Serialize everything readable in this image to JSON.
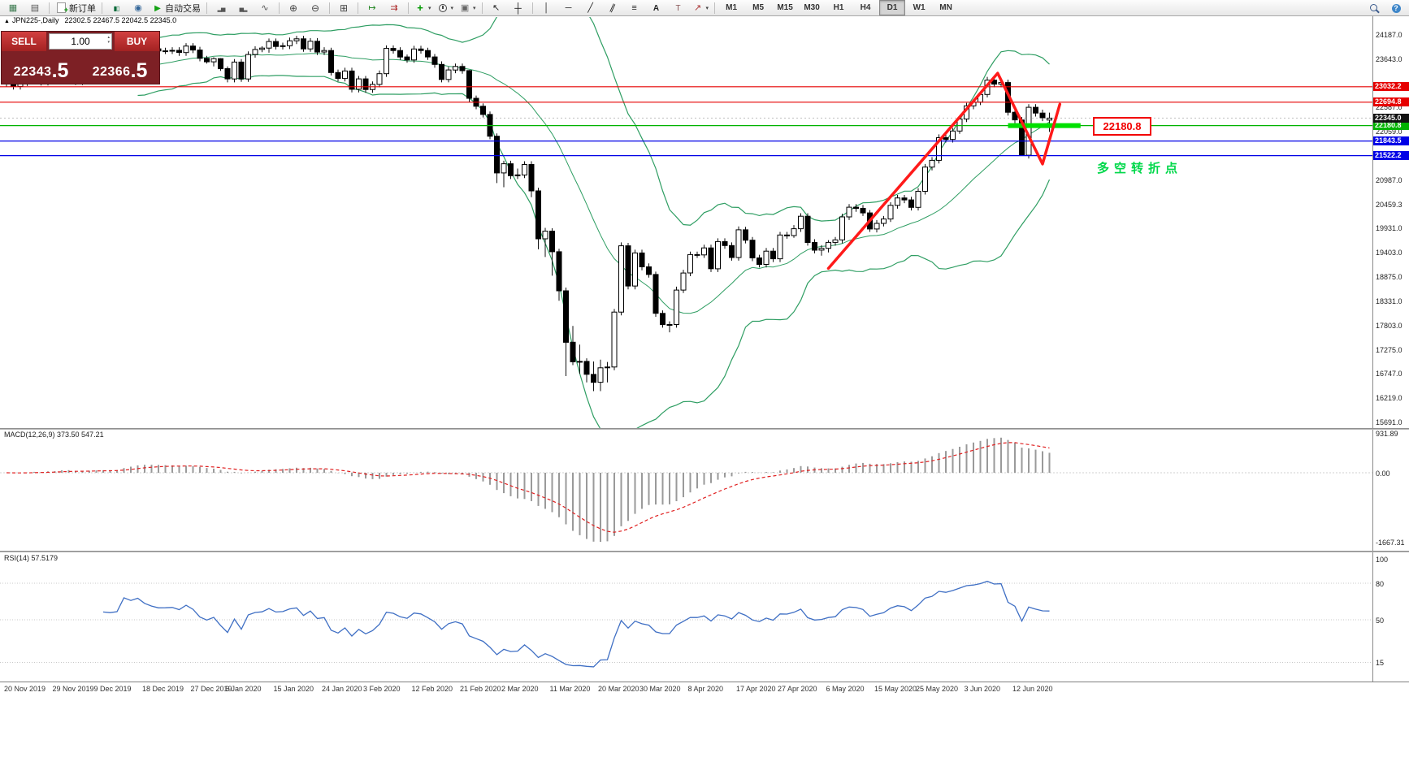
{
  "toolbar": {
    "caret_glyph": "▾",
    "items": [
      {
        "type": "btn",
        "name": "new-chart",
        "icon": "win-chart"
      },
      {
        "type": "btn",
        "name": "chart-profiles",
        "icon": "win-list"
      },
      {
        "type": "sep"
      },
      {
        "type": "btn",
        "name": "new-order",
        "icon": "doc-plus",
        "label": "新订单"
      },
      {
        "type": "sep"
      },
      {
        "type": "btn",
        "name": "market-watch",
        "icon": "candles"
      },
      {
        "type": "btn",
        "name": "data-window",
        "icon": "globe"
      },
      {
        "type": "btn",
        "name": "autotrading",
        "icon": "play",
        "label": "自动交易"
      },
      {
        "type": "sep"
      },
      {
        "type": "btn",
        "name": "bar-chart-mode",
        "icon": "hist-up"
      },
      {
        "type": "btn",
        "name": "candle-chart-mode",
        "icon": "hist-dn"
      },
      {
        "type": "btn",
        "name": "line-chart-mode",
        "icon": "line-mode"
      },
      {
        "type": "sep"
      },
      {
        "type": "btn",
        "name": "zoom-in",
        "icon": "zoom-in"
      },
      {
        "type": "btn",
        "name": "zoom-out",
        "icon": "zoom-out"
      },
      {
        "type": "sep"
      },
      {
        "type": "btn",
        "name": "tile-windows",
        "icon": "tiles"
      },
      {
        "type": "sep"
      },
      {
        "type": "btn",
        "name": "auto-scroll",
        "icon": "autoscroll"
      },
      {
        "type": "btn",
        "name": "chart-shift",
        "icon": "shift"
      },
      {
        "type": "sep"
      },
      {
        "type": "btn",
        "name": "indicators-menu",
        "icon": "plus-green",
        "caret": true
      },
      {
        "type": "btn",
        "name": "periods-menu",
        "icon": "clock",
        "caret": true
      },
      {
        "type": "btn",
        "name": "templates-menu",
        "icon": "template",
        "caret": true
      },
      {
        "type": "sep"
      },
      {
        "type": "btn",
        "name": "cursor-tool",
        "icon": "cursor"
      },
      {
        "type": "btn",
        "name": "crosshair-tool",
        "icon": "crosshair"
      },
      {
        "type": "sep"
      },
      {
        "type": "btn",
        "name": "vertical-line-tool",
        "icon": "vline"
      },
      {
        "type": "btn",
        "name": "horizontal-line-tool",
        "icon": "hline"
      },
      {
        "type": "btn",
        "name": "trendline-tool",
        "icon": "trend"
      },
      {
        "type": "btn",
        "name": "channel-tool",
        "icon": "channel"
      },
      {
        "type": "btn",
        "name": "fibonacci-tool",
        "icon": "fibo"
      },
      {
        "type": "btn",
        "name": "text-tool",
        "icon": "text-a"
      },
      {
        "type": "btn",
        "name": "label-tool",
        "icon": "text-t"
      },
      {
        "type": "btn",
        "name": "arrows-tool",
        "icon": "arrow",
        "caret": true
      },
      {
        "type": "sep"
      },
      {
        "type": "tf",
        "label": "M1"
      },
      {
        "type": "tf",
        "label": "M5"
      },
      {
        "type": "tf",
        "label": "M15"
      },
      {
        "type": "tf",
        "label": "M30"
      },
      {
        "type": "tf",
        "label": "H1"
      },
      {
        "type": "tf",
        "label": "H4"
      },
      {
        "type": "tf",
        "label": "D1",
        "active": true
      },
      {
        "type": "tf",
        "label": "W1"
      },
      {
        "type": "tf",
        "label": "MN"
      },
      {
        "type": "spacer"
      },
      {
        "type": "btn",
        "name": "search",
        "icon": "search"
      },
      {
        "type": "btn",
        "name": "community",
        "icon": "help"
      }
    ]
  },
  "chart_title": {
    "expand_arrow": "▲",
    "symbol": "JPN225-,Daily",
    "ohlc": "22302.5 22467.5 22042.5 22345.0"
  },
  "trade_panel": {
    "sell_label": "SELL",
    "buy_label": "BUY",
    "volume": "1.00",
    "spinner_up": "▴",
    "spinner_down": "▾",
    "sell_price_main": "22343",
    "sell_price_frac": ".5",
    "buy_price_main": "22366",
    "buy_price_frac": ".5"
  },
  "overlays": {
    "price_box_text": "22180.8",
    "annotation_text": "多空转折点",
    "levels": [
      {
        "price": 23032.2,
        "label": "23032.2",
        "color": "#e60000"
      },
      {
        "price": 22694.8,
        "label": "22694.8",
        "color": "#e60000"
      },
      {
        "price": 22180.8,
        "label": "22180.8",
        "color": "#00b300",
        "thick_from": 145,
        "thick_to": 155.5,
        "thick_color": "#00e000"
      },
      {
        "price": 21843.5,
        "label": "21843.5",
        "color": "#0000e6"
      },
      {
        "price": 21522.2,
        "label": "21522.2",
        "color": "#0000e6"
      }
    ],
    "current_price": {
      "label": "22345.0",
      "price": 22345.0,
      "badge_color": "#111111"
    },
    "trend_polyline": {
      "color": "#ff1a1a",
      "points": [
        [
          119,
          19050
        ],
        [
          143.5,
          23330
        ],
        [
          150,
          21340
        ],
        [
          152.5,
          22650
        ]
      ]
    }
  },
  "price_axis_ticks": [
    "24187.0",
    "23643.0",
    "22587.0",
    "22059.0",
    "20987.0",
    "20459.3",
    "19931.0",
    "19403.0",
    "18875.0",
    "18331.0",
    "17803.0",
    "17275.0",
    "16747.0",
    "16219.0",
    "15691.0"
  ],
  "chart_data": {
    "type": "candlestick",
    "symbol": "JPN225-",
    "timeframe": "Daily",
    "ylim": [
      15691,
      24187
    ],
    "bollinger": {
      "period": 20,
      "deviation": 2,
      "color": "#2f9e63"
    },
    "date_labels": [
      [
        0,
        "20 Nov 2019"
      ],
      [
        7,
        "29 Nov 2019"
      ],
      [
        13,
        "9 Dec 2019"
      ],
      [
        20,
        "18 Dec 2019"
      ],
      [
        27,
        "27 Dec 2019"
      ],
      [
        32,
        "6 Jan 2020"
      ],
      [
        39,
        "15 Jan 2020"
      ],
      [
        46,
        "24 Jan 2020"
      ],
      [
        52,
        "3 Feb 2020"
      ],
      [
        59,
        "12 Feb 2020"
      ],
      [
        66,
        "21 Feb 2020"
      ],
      [
        72,
        "2 Mar 2020"
      ],
      [
        79,
        "11 Mar 2020"
      ],
      [
        86,
        "20 Mar 2020"
      ],
      [
        92,
        "30 Mar 2020"
      ],
      [
        99,
        "8 Apr 2020"
      ],
      [
        106,
        "17 Apr 2020"
      ],
      [
        112,
        "27 Apr 2020"
      ],
      [
        119,
        "6 May 2020"
      ],
      [
        126,
        "15 May 2020"
      ],
      [
        132,
        "25 May 2020"
      ],
      [
        139,
        "3 Jun 2020"
      ],
      [
        146,
        "12 Jun 2020"
      ]
    ],
    "ohlc": [
      [
        23100,
        23220,
        23030,
        23149
      ],
      [
        23149,
        23210,
        22970,
        23039
      ],
      [
        23039,
        23180,
        22970,
        23113
      ],
      [
        23113,
        23360,
        23050,
        23293
      ],
      [
        23293,
        23440,
        23220,
        23373
      ],
      [
        23373,
        23440,
        23060,
        23126
      ],
      [
        23126,
        23480,
        23060,
        23409
      ],
      [
        23409,
        23480,
        23230,
        23294
      ],
      [
        23294,
        23600,
        23230,
        23530
      ],
      [
        23530,
        23600,
        23310,
        23380
      ],
      [
        23380,
        23450,
        23070,
        23135
      ],
      [
        23135,
        23370,
        23070,
        23300
      ],
      [
        23300,
        23420,
        23230,
        23354
      ],
      [
        23354,
        23500,
        23290,
        23430
      ],
      [
        23430,
        23480,
        23340,
        23410
      ],
      [
        23410,
        23480,
        23320,
        23391
      ],
      [
        23391,
        23490,
        23320,
        23425
      ],
      [
        23425,
        24090,
        23360,
        24023
      ],
      [
        24023,
        24090,
        23880,
        23952
      ],
      [
        23952,
        24130,
        23880,
        24066
      ],
      [
        24066,
        24130,
        23870,
        23934
      ],
      [
        23934,
        24000,
        23800,
        23864
      ],
      [
        23864,
        23930,
        23750,
        23817
      ],
      [
        23817,
        23890,
        23750,
        23821
      ],
      [
        23821,
        23900,
        23750,
        23830
      ],
      [
        23830,
        23900,
        23710,
        23783
      ],
      [
        23783,
        23990,
        23710,
        23925
      ],
      [
        23925,
        23990,
        23770,
        23838
      ],
      [
        23838,
        23910,
        23590,
        23657
      ],
      [
        23657,
        23710,
        23540,
        23580
      ],
      [
        23580,
        23680,
        23480,
        23650
      ],
      [
        23650,
        23660,
        23380,
        23430
      ],
      [
        23430,
        23480,
        23130,
        23205
      ],
      [
        23205,
        23640,
        23130,
        23575
      ],
      [
        23575,
        23640,
        23140,
        23204
      ],
      [
        23204,
        23810,
        23140,
        23740
      ],
      [
        23740,
        23920,
        23670,
        23851
      ],
      [
        23851,
        23920,
        23790,
        23880
      ],
      [
        23880,
        24090,
        23780,
        24025
      ],
      [
        24025,
        24090,
        23850,
        23917
      ],
      [
        23917,
        24000,
        23850,
        23933
      ],
      [
        23933,
        24110,
        23860,
        24041
      ],
      [
        24041,
        24150,
        23970,
        24084
      ],
      [
        24084,
        24150,
        23800,
        23864
      ],
      [
        23864,
        24100,
        23800,
        24031
      ],
      [
        24031,
        24100,
        23730,
        23795
      ],
      [
        23795,
        23900,
        23730,
        23827
      ],
      [
        23827,
        23890,
        23280,
        23344
      ],
      [
        23344,
        23410,
        23150,
        23216
      ],
      [
        23216,
        23450,
        23150,
        23379
      ],
      [
        23379,
        23450,
        22910,
        22978
      ],
      [
        22978,
        23270,
        22910,
        23205
      ],
      [
        23205,
        23270,
        22900,
        22972
      ],
      [
        22972,
        23150,
        22900,
        23085
      ],
      [
        23085,
        23390,
        23020,
        23320
      ],
      [
        23320,
        23940,
        23250,
        23874
      ],
      [
        23874,
        23940,
        23760,
        23828
      ],
      [
        23828,
        23900,
        23620,
        23686
      ],
      [
        23686,
        23740,
        23560,
        23620
      ],
      [
        23620,
        23930,
        23560,
        23861
      ],
      [
        23861,
        23930,
        23760,
        23828
      ],
      [
        23828,
        23890,
        23620,
        23687
      ],
      [
        23687,
        23750,
        23450,
        23523
      ],
      [
        23523,
        23590,
        23130,
        23193
      ],
      [
        23193,
        23470,
        23130,
        23401
      ],
      [
        23401,
        23540,
        23330,
        23479
      ],
      [
        23479,
        23540,
        23320,
        23387
      ],
      [
        23387,
        23400,
        22700,
        22780
      ],
      [
        22780,
        22840,
        22540,
        22605
      ],
      [
        22605,
        22670,
        22360,
        22426
      ],
      [
        22426,
        22490,
        21880,
        21948
      ],
      [
        21948,
        22010,
        20920,
        21143
      ],
      [
        21143,
        21410,
        20830,
        21344
      ],
      [
        21344,
        21410,
        21010,
        21083
      ],
      [
        21083,
        21240,
        21010,
        21100
      ],
      [
        21100,
        21400,
        21030,
        21329
      ],
      [
        21329,
        21400,
        20610,
        20750
      ],
      [
        20750,
        20820,
        19470,
        19699
      ],
      [
        19699,
        19940,
        19300,
        19867
      ],
      [
        19867,
        19930,
        18890,
        19416
      ],
      [
        19416,
        19480,
        18340,
        18560
      ],
      [
        18560,
        18630,
        16690,
        17431
      ],
      [
        17431,
        17790,
        16930,
        17002
      ],
      [
        17002,
        17380,
        16740,
        17011
      ],
      [
        17011,
        17080,
        16550,
        16727
      ],
      [
        16727,
        17010,
        16360,
        16553
      ],
      [
        16553,
        17050,
        16360,
        16870
      ],
      [
        16870,
        17000,
        16550,
        16888
      ],
      [
        16888,
        18160,
        16820,
        18092
      ],
      [
        18092,
        19620,
        18020,
        19546
      ],
      [
        19546,
        19610,
        18590,
        18665
      ],
      [
        18665,
        19460,
        18590,
        19389
      ],
      [
        19389,
        19460,
        19010,
        19085
      ],
      [
        19085,
        19160,
        18850,
        18917
      ],
      [
        18917,
        18980,
        17990,
        18065
      ],
      [
        18065,
        18130,
        17750,
        17819
      ],
      [
        17819,
        17890,
        17650,
        17820
      ],
      [
        17820,
        18650,
        17750,
        18576
      ],
      [
        18576,
        19020,
        18510,
        18950
      ],
      [
        18950,
        19420,
        18880,
        19353
      ],
      [
        19353,
        19420,
        19280,
        19346
      ],
      [
        19346,
        19570,
        19280,
        19499
      ],
      [
        19499,
        19570,
        18970,
        19043
      ],
      [
        19043,
        19710,
        18970,
        19639
      ],
      [
        19639,
        19710,
        19480,
        19551
      ],
      [
        19551,
        19620,
        19220,
        19290
      ],
      [
        19290,
        19970,
        19220,
        19897
      ],
      [
        19897,
        19960,
        19600,
        19669
      ],
      [
        19669,
        19740,
        19210,
        19281
      ],
      [
        19281,
        19350,
        19070,
        19138
      ],
      [
        19138,
        19500,
        19070,
        19429
      ],
      [
        19429,
        19500,
        19190,
        19262
      ],
      [
        19262,
        19850,
        19190,
        19783
      ],
      [
        19783,
        19850,
        19700,
        19771
      ],
      [
        19771,
        20000,
        19720,
        19920
      ],
      [
        19920,
        20260,
        19850,
        20194
      ],
      [
        20194,
        20260,
        19550,
        19619
      ],
      [
        19619,
        19690,
        19380,
        19450
      ],
      [
        19450,
        19560,
        19330,
        19490
      ],
      [
        19490,
        19670,
        19400,
        19620
      ],
      [
        19620,
        19740,
        19550,
        19675
      ],
      [
        19675,
        20250,
        19600,
        20179
      ],
      [
        20179,
        20460,
        20110,
        20391
      ],
      [
        20391,
        20460,
        20290,
        20366
      ],
      [
        20366,
        20440,
        20200,
        20267
      ],
      [
        20267,
        20330,
        19850,
        19915
      ],
      [
        19915,
        20110,
        19840,
        20037
      ],
      [
        20037,
        20200,
        19970,
        20134
      ],
      [
        20134,
        20500,
        20070,
        20433
      ],
      [
        20433,
        20660,
        20360,
        20595
      ],
      [
        20595,
        20660,
        20480,
        20552
      ],
      [
        20552,
        20620,
        20320,
        20388
      ],
      [
        20388,
        20810,
        20320,
        20741
      ],
      [
        20741,
        21340,
        20670,
        21271
      ],
      [
        21271,
        21490,
        21200,
        21419
      ],
      [
        21419,
        21990,
        21350,
        21916
      ],
      [
        21916,
        21980,
        21810,
        21878
      ],
      [
        21878,
        22130,
        21810,
        22062
      ],
      [
        22062,
        22390,
        22000,
        22326
      ],
      [
        22326,
        22680,
        22260,
        22614
      ],
      [
        22614,
        22760,
        22540,
        22696
      ],
      [
        22696,
        22930,
        22630,
        22864
      ],
      [
        22864,
        23250,
        22800,
        23178
      ],
      [
        23178,
        23240,
        23020,
        23091
      ],
      [
        23091,
        23190,
        23020,
        23125
      ],
      [
        23125,
        23190,
        22400,
        22473
      ],
      [
        22473,
        22540,
        22230,
        22305
      ],
      [
        22305,
        22370,
        21530,
        21531
      ],
      [
        21531,
        22650,
        21460,
        22582
      ],
      [
        22582,
        22650,
        22380,
        22456
      ],
      [
        22456,
        22530,
        22280,
        22355
      ],
      [
        22302,
        22467,
        22042,
        22345
      ]
    ]
  },
  "indicators": {
    "macd": {
      "label": "MACD(12,26,9) 373.50 547.21",
      "fast": 12,
      "slow": 26,
      "signal": 9,
      "ticks": [
        "931.89",
        "0.00",
        "-1667.31"
      ],
      "hist_color": "#9a9a9a",
      "signal_color": "#e02020"
    },
    "rsi": {
      "label": "RSI(14) 57.5179",
      "period": 14,
      "ticks": [
        "100",
        "80",
        "50",
        "15"
      ],
      "levels": [
        80,
        50,
        15
      ],
      "color": "#3f6fc4"
    }
  }
}
